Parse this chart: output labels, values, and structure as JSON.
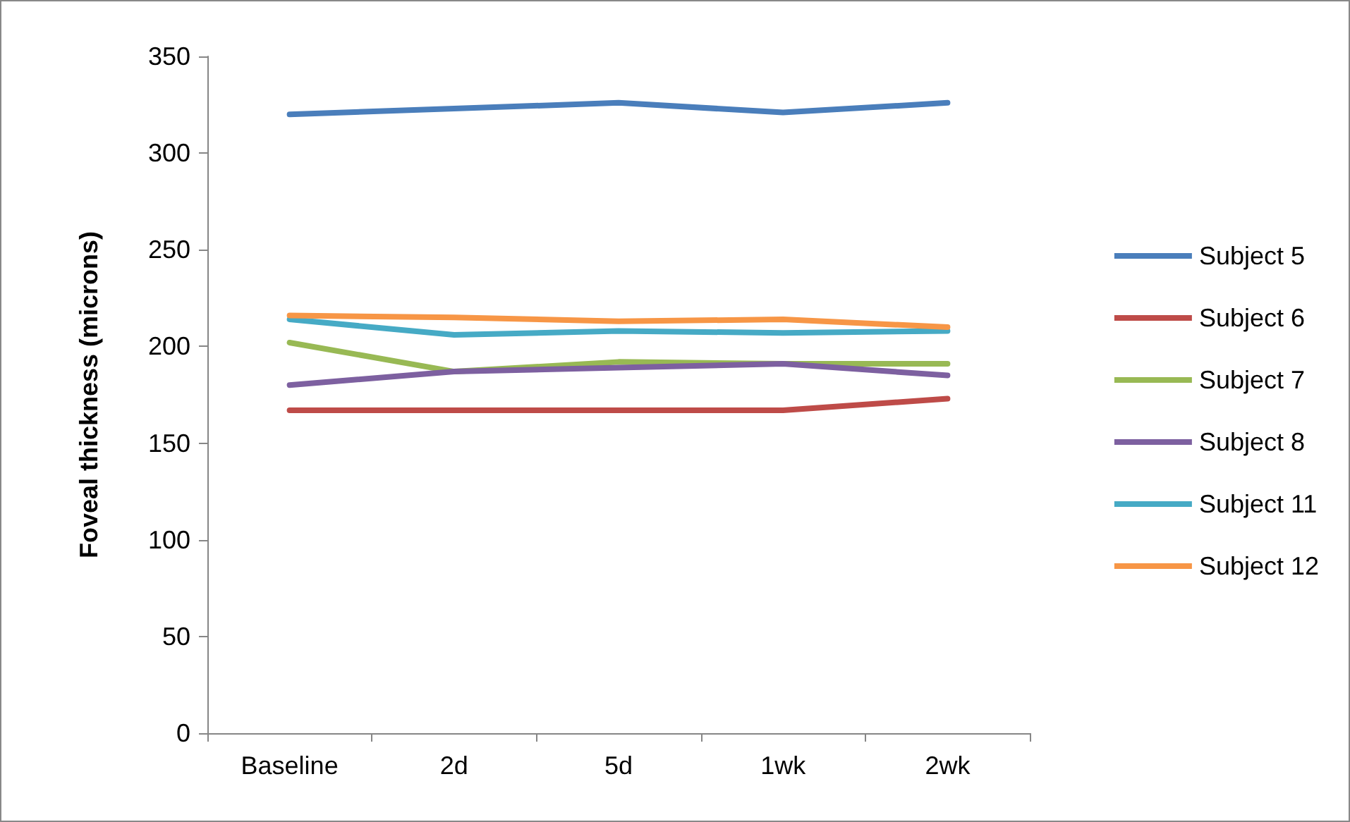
{
  "chart_data": {
    "type": "line",
    "ylabel": "Foveal thickness (microns)",
    "categories": [
      "Baseline",
      "2d",
      "5d",
      "1wk",
      "2wk"
    ],
    "series": [
      {
        "name": "Subject 5",
        "color": "#4a7ebb",
        "values": [
          320,
          323,
          326,
          321,
          326
        ]
      },
      {
        "name": "Subject 6",
        "color": "#be4b48",
        "values": [
          167,
          167,
          167,
          167,
          173
        ]
      },
      {
        "name": "Subject 7",
        "color": "#98b954",
        "values": [
          202,
          187,
          192,
          191,
          191
        ]
      },
      {
        "name": "Subject 8",
        "color": "#7d60a0",
        "values": [
          180,
          187,
          189,
          191,
          185
        ]
      },
      {
        "name": "Subject 11",
        "color": "#46aac5",
        "values": [
          214,
          206,
          208,
          207,
          208
        ]
      },
      {
        "name": "Subject 12",
        "color": "#f79646",
        "values": [
          216,
          215,
          213,
          214,
          210
        ]
      }
    ],
    "ylim": [
      0,
      350
    ],
    "yticks": [
      0,
      50,
      100,
      150,
      200,
      250,
      300,
      350
    ],
    "grid": false,
    "legend": "right",
    "marker": "none",
    "line_style": "solid"
  }
}
